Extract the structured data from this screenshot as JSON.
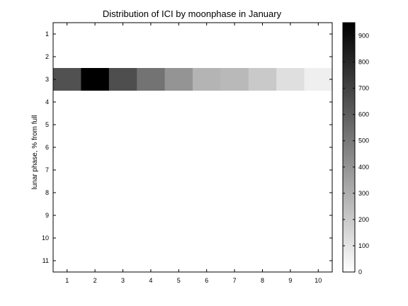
{
  "chart_data": {
    "type": "heatmap",
    "title": "Distribution of ICI by moonphase in January",
    "xlabel": "",
    "ylabel": "lunar phase, % from full",
    "x_categories": [
      "1",
      "2",
      "3",
      "4",
      "5",
      "6",
      "7",
      "8",
      "9",
      "10"
    ],
    "y_categories": [
      "1",
      "2",
      "3",
      "4",
      "5",
      "6",
      "7",
      "8",
      "9",
      "10",
      "11"
    ],
    "colormap": "gray-reversed",
    "clim": [
      0,
      950
    ],
    "colorbar_ticks": [
      "0",
      "100",
      "200",
      "300",
      "400",
      "500",
      "600",
      "700",
      "800",
      "900"
    ],
    "row_values": {
      "3": [
        650,
        950,
        660,
        520,
        400,
        280,
        260,
        200,
        120,
        60
      ]
    }
  }
}
